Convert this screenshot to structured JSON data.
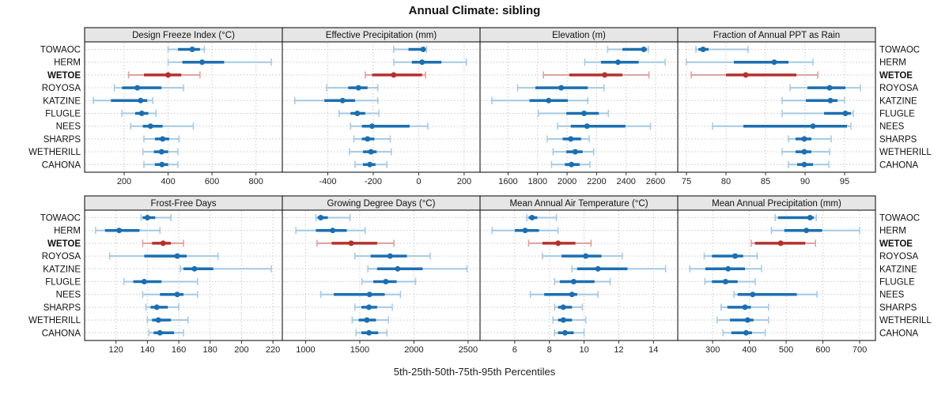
{
  "title": "Annual Climate: sibling",
  "caption": "5th-25th-50th-75th-95th Percentiles",
  "colors": {
    "normal": "#1b6fb0",
    "normal_light": "#a4c8e2",
    "highlight": "#b4302e",
    "highlight_light": "#d9a09c",
    "strip_bg": "#e6e6e6",
    "grid": "#c9c9c9",
    "border": "#000000",
    "text": "#111111"
  },
  "chart_data": {
    "type": "dotplot",
    "layout": "2 rows x 4 cols",
    "percentiles": [
      5,
      25,
      50,
      75,
      95
    ],
    "stations": [
      "TOWAOC",
      "HERM",
      "WETOE",
      "ROYOSA",
      "KATZINE",
      "FLUGLE",
      "NEES",
      "SHARPS",
      "WETHERILL",
      "CAHONA"
    ],
    "highlight_station": "WETOE",
    "panels": [
      {
        "title": "Design Freeze Index (°C)",
        "xlim": [
          20,
          920
        ],
        "ticks": [
          200,
          400,
          600,
          800
        ],
        "values": {
          "TOWAOC": [
            400,
            445,
            510,
            545,
            565
          ],
          "HERM": [
            400,
            465,
            555,
            655,
            870
          ],
          "WETOE": [
            220,
            290,
            400,
            460,
            545
          ],
          "ROYOSA": [
            155,
            190,
            260,
            370,
            470
          ],
          "KATZINE": [
            60,
            140,
            275,
            305,
            330
          ],
          "FLUGLE": [
            190,
            250,
            280,
            310,
            345
          ],
          "NEES": [
            230,
            285,
            320,
            375,
            515
          ],
          "SHARPS": [
            290,
            340,
            375,
            405,
            450
          ],
          "WETHERILL": [
            285,
            335,
            370,
            400,
            445
          ],
          "CAHONA": [
            290,
            340,
            372,
            400,
            445
          ]
        }
      },
      {
        "title": "Effective Precipitation (mm)",
        "xlim": [
          -600,
          270
        ],
        "ticks": [
          -400,
          -200,
          0,
          200
        ],
        "values": {
          "TOWAOC": [
            -110,
            -45,
            20,
            30,
            35
          ],
          "HERM": [
            -110,
            -30,
            15,
            100,
            210
          ],
          "WETOE": [
            -235,
            -205,
            -110,
            15,
            30
          ],
          "ROYOSA": [
            -405,
            -310,
            -265,
            -225,
            -180
          ],
          "KATZINE": [
            -545,
            -415,
            -335,
            -280,
            -180
          ],
          "FLUGLE": [
            -350,
            -300,
            -270,
            -235,
            -175
          ],
          "NEES": [
            -300,
            -250,
            -205,
            -40,
            40
          ],
          "SHARPS": [
            -285,
            -250,
            -225,
            -195,
            -125
          ],
          "WETHERILL": [
            -305,
            -245,
            -210,
            -185,
            -120
          ],
          "CAHONA": [
            -280,
            -245,
            -215,
            -190,
            -140
          ]
        }
      },
      {
        "title": "Elevation (m)",
        "xlim": [
          1410,
          2750
        ],
        "ticks": [
          1600,
          1800,
          2000,
          2200,
          2400,
          2600
        ],
        "values": {
          "TOWAOC": [
            2275,
            2375,
            2520,
            2540,
            2550
          ],
          "HERM": [
            2120,
            2230,
            2345,
            2485,
            2665
          ],
          "WETOE": [
            1840,
            2015,
            2255,
            2375,
            2555
          ],
          "ROYOSA": [
            1665,
            1785,
            1960,
            2140,
            2250
          ],
          "KATZINE": [
            1490,
            1745,
            1875,
            2005,
            2140
          ],
          "FLUGLE": [
            1805,
            1995,
            2115,
            2215,
            2280
          ],
          "NEES": [
            1935,
            2025,
            2135,
            2395,
            2565
          ],
          "SHARPS": [
            1865,
            1970,
            2025,
            2095,
            2150
          ],
          "WETHERILL": [
            1905,
            1995,
            2055,
            2105,
            2180
          ],
          "CAHONA": [
            1895,
            1985,
            2030,
            2085,
            2155
          ]
        }
      },
      {
        "title": "Fraction of Annual PPT as Rain",
        "xlim": [
          73.9,
          98.9
        ],
        "ticks": [
          75,
          80,
          85,
          90,
          95
        ],
        "values": {
          "TOWAOC": [
            76.2,
            76.5,
            77.1,
            77.8,
            82.8
          ],
          "HERM": [
            75.0,
            81.0,
            86.1,
            87.9,
            91.0
          ],
          "WETOE": [
            75.6,
            80.0,
            82.5,
            88.9,
            91.6
          ],
          "ROYOSA": [
            88.1,
            90.3,
            93.1,
            95.1,
            97.0
          ],
          "KATZINE": [
            87.1,
            90.1,
            93.2,
            94.1,
            95.0
          ],
          "FLUGLE": [
            87.1,
            92.4,
            95.1,
            95.8,
            96.1
          ],
          "NEES": [
            78.3,
            82.2,
            91.0,
            95.3,
            95.8
          ],
          "SHARPS": [
            87.9,
            88.8,
            89.9,
            90.8,
            93.3
          ],
          "WETHERILL": [
            87.1,
            88.8,
            89.9,
            90.8,
            93.1
          ],
          "CAHONA": [
            87.9,
            89.0,
            89.9,
            91.0,
            93.0
          ]
        }
      },
      {
        "title": "Frost-Free Days",
        "xlim": [
          100,
          226
        ],
        "ticks": [
          120,
          140,
          160,
          180,
          200,
          220
        ],
        "values": {
          "TOWAOC": [
            136,
            137,
            140,
            145,
            155
          ],
          "HERM": [
            107,
            113,
            122,
            135,
            148
          ],
          "WETOE": [
            137,
            143,
            150,
            155,
            163
          ],
          "ROYOSA": [
            116,
            138,
            159,
            165,
            185
          ],
          "KATZINE": [
            161,
            163,
            170,
            182,
            219
          ],
          "FLUGLE": [
            125,
            131,
            138,
            149,
            172
          ],
          "NEES": [
            137,
            148,
            159,
            163,
            172
          ],
          "SHARPS": [
            139,
            142,
            146,
            153,
            160
          ],
          "WETHERILL": [
            140,
            143,
            147,
            155,
            166
          ],
          "CAHONA": [
            141,
            144,
            148,
            157,
            163
          ]
        }
      },
      {
        "title": "Growing Degree Days (°C)",
        "xlim": [
          785,
          2610
        ],
        "ticks": [
          1000,
          1500,
          2000,
          2500
        ],
        "values": {
          "TOWAOC": [
            1095,
            1110,
            1140,
            1205,
            1410
          ],
          "HERM": [
            910,
            1095,
            1250,
            1380,
            1550
          ],
          "WETOE": [
            1105,
            1240,
            1420,
            1660,
            1815
          ],
          "ROYOSA": [
            1455,
            1600,
            1780,
            1935,
            2150
          ],
          "KATZINE": [
            1575,
            1660,
            1850,
            2080,
            2490
          ],
          "FLUGLE": [
            1520,
            1625,
            1740,
            1840,
            2015
          ],
          "NEES": [
            1140,
            1260,
            1590,
            1730,
            1875
          ],
          "SHARPS": [
            1455,
            1515,
            1585,
            1660,
            1800
          ],
          "WETHERILL": [
            1430,
            1490,
            1565,
            1650,
            1765
          ],
          "CAHONA": [
            1465,
            1515,
            1585,
            1670,
            1750
          ]
        }
      },
      {
        "title": "Mean Annual Air Temperature (°C)",
        "xlim": [
          4.0,
          15.4
        ],
        "ticks": [
          6,
          8,
          10,
          12,
          14
        ],
        "values": {
          "TOWAOC": [
            6.7,
            6.8,
            7.0,
            7.3,
            8.4
          ],
          "HERM": [
            4.7,
            6.0,
            6.6,
            7.4,
            8.5
          ],
          "WETOE": [
            6.8,
            7.6,
            8.5,
            9.5,
            10.4
          ],
          "ROYOSA": [
            7.6,
            8.7,
            10.1,
            11.0,
            12.2
          ],
          "KATZINE": [
            9.3,
            9.6,
            10.8,
            12.5,
            14.7
          ],
          "FLUGLE": [
            8.3,
            8.6,
            9.4,
            10.6,
            11.5
          ],
          "NEES": [
            6.9,
            7.7,
            9.3,
            9.6,
            10.8
          ],
          "SHARPS": [
            8.3,
            8.5,
            8.8,
            9.3,
            9.9
          ],
          "WETHERILL": [
            8.2,
            8.5,
            8.8,
            9.3,
            10.1
          ],
          "CAHONA": [
            8.3,
            8.5,
            8.9,
            9.4,
            10.0
          ]
        }
      },
      {
        "title": "Mean Annual Precipitation (mm)",
        "xlim": [
          205,
          743
        ],
        "ticks": [
          300,
          400,
          500,
          600,
          700
        ],
        "values": {
          "TOWAOC": [
            470,
            478,
            565,
            575,
            582
          ],
          "HERM": [
            460,
            495,
            555,
            598,
            700
          ],
          "WETOE": [
            405,
            415,
            485,
            552,
            580
          ],
          "ROYOSA": [
            277,
            298,
            361,
            383,
            421
          ],
          "KATZINE": [
            238,
            280,
            342,
            388,
            433
          ],
          "FLUGLE": [
            279,
            298,
            335,
            368,
            416
          ],
          "NEES": [
            358,
            368,
            409,
            529,
            584
          ],
          "SHARPS": [
            323,
            340,
            388,
            404,
            452
          ],
          "WETHERILL": [
            312,
            347,
            395,
            411,
            452
          ],
          "CAHONA": [
            328,
            351,
            391,
            407,
            443
          ]
        }
      }
    ]
  }
}
